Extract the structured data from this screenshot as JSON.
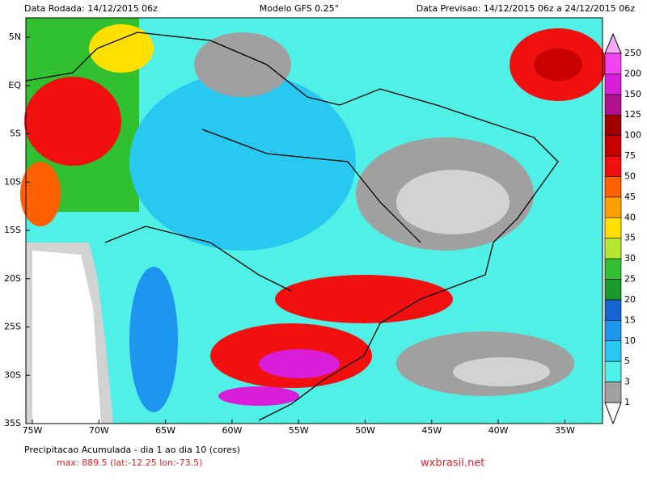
{
  "header": {
    "left": "Data Rodada: 14/12/2015 06z",
    "center": "Modelo GFS 0.25°",
    "right": "Data Previsao: 14/12/2015 06z a 24/12/2015 06z"
  },
  "latitudes": [
    "5N",
    "EQ",
    "5S",
    "10S",
    "15S",
    "20S",
    "25S",
    "30S",
    "35S"
  ],
  "longitudes": [
    "75W",
    "70W",
    "65W",
    "60W",
    "55W",
    "50W",
    "45W",
    "40W",
    "35W"
  ],
  "colorbar": [
    {
      "label": "250",
      "color": "#f044f0"
    },
    {
      "label": "200",
      "color": "#d81ed8"
    },
    {
      "label": "150",
      "color": "#b01090"
    },
    {
      "label": "125",
      "color": "#a00000"
    },
    {
      "label": "100",
      "color": "#c80000"
    },
    {
      "label": "75",
      "color": "#f01010"
    },
    {
      "label": "50",
      "color": "#ff6000"
    },
    {
      "label": "45",
      "color": "#ffa000"
    },
    {
      "label": "40",
      "color": "#ffe000"
    },
    {
      "label": "35",
      "color": "#b4e632"
    },
    {
      "label": "30",
      "color": "#30c030"
    },
    {
      "label": "25",
      "color": "#1a9a2a"
    },
    {
      "label": "20",
      "color": "#1464d2"
    },
    {
      "label": "15",
      "color": "#1e96f0"
    },
    {
      "label": "10",
      "color": "#28c8f0"
    },
    {
      "label": "5",
      "color": "#50f0e6"
    },
    {
      "label": "3",
      "color": "#a0a0a0"
    },
    {
      "label": "1",
      "color": "#d2d2d2"
    }
  ],
  "footer": {
    "title": "Precipitacao Acumulada - dia 1 ao dia 10 (cores)",
    "max": "max: 889.5 (lat:-12.25 lon:-73.5)",
    "site": "wxbrasil.net"
  }
}
